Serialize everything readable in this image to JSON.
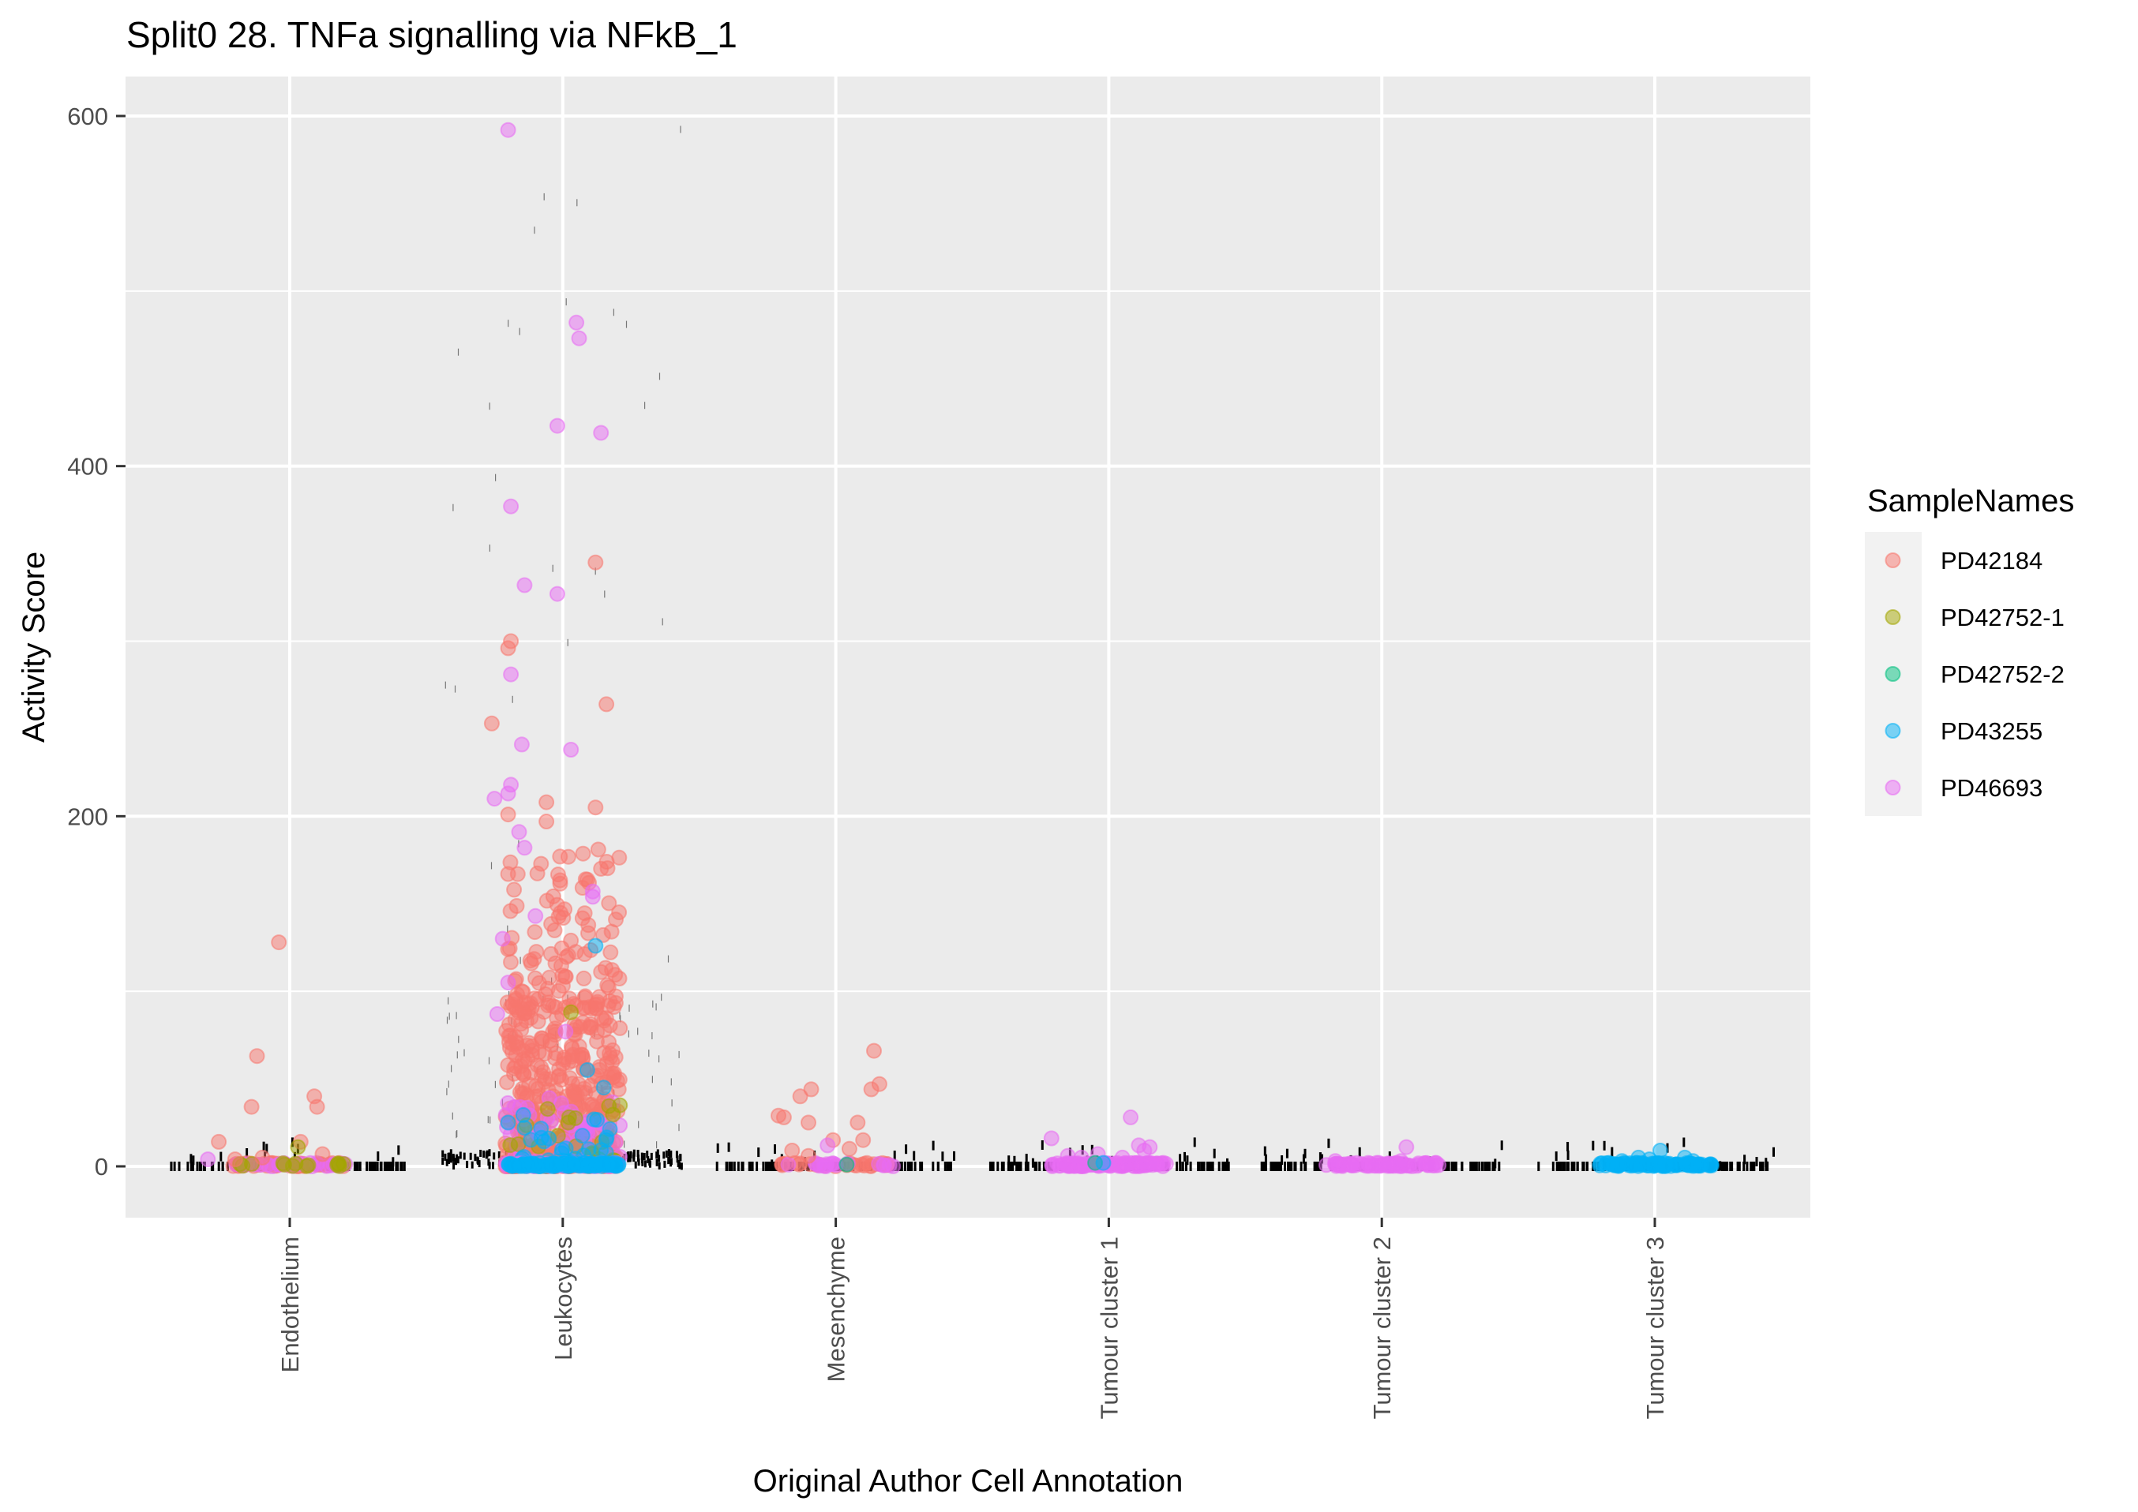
{
  "chart_data": {
    "type": "scatter",
    "subtype": "jitter-strip",
    "title": "Split0 28. TNFa signalling via NFkB_1",
    "xlabel": "Original Author Cell Annotation",
    "ylabel": "Activity Score",
    "ylim": [
      -29,
      610
    ],
    "yticks": [
      0,
      200,
      400,
      600
    ],
    "y_minor_ticks": [
      100,
      300,
      500
    ],
    "grid": true,
    "categories": [
      "Endothelium",
      "Leukocytes",
      "Mesenchyme",
      "Tumour cluster 1",
      "Tumour cluster 2",
      "Tumour cluster 3"
    ],
    "legend": {
      "title": "SampleNames",
      "position": "right",
      "entries": [
        {
          "label": "PD42184",
          "color": "#F8766D"
        },
        {
          "label": "PD42752-1",
          "color": "#A3A500"
        },
        {
          "label": "PD42752-2",
          "color": "#00BF7D"
        },
        {
          "label": "PD43255",
          "color": "#00B0F6"
        },
        {
          "label": "PD46693",
          "color": "#E76BF3"
        }
      ]
    },
    "point_alpha": 0.5,
    "groups": [
      {
        "category": "Endothelium",
        "dense_baseline": [
          {
            "sample": "PD42184",
            "n": 40
          },
          {
            "sample": "PD46693",
            "n": 25
          },
          {
            "sample": "PD42752-1",
            "n": 14
          }
        ],
        "points": [
          {
            "sample": "PD42184",
            "dx": -0.04,
            "y": 128
          },
          {
            "sample": "PD42184",
            "dx": -0.12,
            "y": 63
          },
          {
            "sample": "PD42184",
            "dx": 0.09,
            "y": 40
          },
          {
            "sample": "PD42184",
            "dx": 0.1,
            "y": 34
          },
          {
            "sample": "PD42184",
            "dx": -0.14,
            "y": 34
          },
          {
            "sample": "PD42184",
            "dx": 0.04,
            "y": 14
          },
          {
            "sample": "PD42184",
            "dx": -0.26,
            "y": 14
          },
          {
            "sample": "PD42184",
            "dx": 0.12,
            "y": 7
          },
          {
            "sample": "PD42184",
            "dx": -0.2,
            "y": 4
          },
          {
            "sample": "PD42184",
            "dx": -0.1,
            "y": 5
          },
          {
            "sample": "PD42752-1",
            "dx": 0.03,
            "y": 11
          },
          {
            "sample": "PD46693",
            "dx": -0.3,
            "y": 4
          }
        ]
      },
      {
        "category": "Leukocytes",
        "dense_baseline": [
          {
            "sample": "PD42184",
            "n": 60
          },
          {
            "sample": "PD46693",
            "n": 55
          },
          {
            "sample": "PD43255",
            "n": 90
          }
        ],
        "cloud": [
          {
            "sample": "PD42184",
            "n": 420,
            "ymax": 90
          },
          {
            "sample": "PD42184",
            "n": 120,
            "ymin": 90,
            "ymax": 180
          },
          {
            "sample": "PD46693",
            "n": 70,
            "ymax": 40
          },
          {
            "sample": "PD42752-1",
            "n": 25,
            "ymax": 40
          },
          {
            "sample": "PD43255",
            "n": 30,
            "ymax": 30
          }
        ],
        "points": [
          {
            "sample": "PD46693",
            "dx": -0.2,
            "y": 592
          },
          {
            "sample": "PD46693",
            "dx": 0.05,
            "y": 482
          },
          {
            "sample": "PD46693",
            "dx": 0.06,
            "y": 473
          },
          {
            "sample": "PD46693",
            "dx": -0.02,
            "y": 423
          },
          {
            "sample": "PD46693",
            "dx": 0.14,
            "y": 419
          },
          {
            "sample": "PD46693",
            "dx": -0.19,
            "y": 377
          },
          {
            "sample": "PD42184",
            "dx": 0.12,
            "y": 345
          },
          {
            "sample": "PD46693",
            "dx": -0.14,
            "y": 332
          },
          {
            "sample": "PD46693",
            "dx": -0.02,
            "y": 327
          },
          {
            "sample": "PD42184",
            "dx": -0.19,
            "y": 300
          },
          {
            "sample": "PD42184",
            "dx": -0.2,
            "y": 296
          },
          {
            "sample": "PD46693",
            "dx": -0.19,
            "y": 281
          },
          {
            "sample": "PD42184",
            "dx": 0.16,
            "y": 264
          },
          {
            "sample": "PD42184",
            "dx": -0.26,
            "y": 253
          },
          {
            "sample": "PD46693",
            "dx": -0.15,
            "y": 241
          },
          {
            "sample": "PD46693",
            "dx": 0.03,
            "y": 238
          },
          {
            "sample": "PD46693",
            "dx": -0.19,
            "y": 218
          },
          {
            "sample": "PD46693",
            "dx": -0.2,
            "y": 213
          },
          {
            "sample": "PD46693",
            "dx": -0.25,
            "y": 210
          },
          {
            "sample": "PD42184",
            "dx": -0.06,
            "y": 208
          },
          {
            "sample": "PD42184",
            "dx": 0.12,
            "y": 205
          },
          {
            "sample": "PD42184",
            "dx": -0.2,
            "y": 201
          },
          {
            "sample": "PD42184",
            "dx": -0.06,
            "y": 197
          },
          {
            "sample": "PD46693",
            "dx": -0.16,
            "y": 191
          },
          {
            "sample": "PD46693",
            "dx": -0.14,
            "y": 182
          },
          {
            "sample": "PD42184",
            "dx": 0.13,
            "y": 181
          },
          {
            "sample": "PD42184",
            "dx": -0.01,
            "y": 177
          },
          {
            "sample": "PD42184",
            "dx": 0.14,
            "y": 170
          },
          {
            "sample": "PD42184",
            "dx": -0.2,
            "y": 167
          },
          {
            "sample": "PD46693",
            "dx": 0.11,
            "y": 157
          },
          {
            "sample": "PD46693",
            "dx": 0.11,
            "y": 154
          },
          {
            "sample": "PD46693",
            "dx": -0.1,
            "y": 143
          },
          {
            "sample": "PD43255",
            "dx": 0.12,
            "y": 126
          },
          {
            "sample": "PD46693",
            "dx": -0.22,
            "y": 130
          },
          {
            "sample": "PD46693",
            "dx": -0.2,
            "y": 105
          },
          {
            "sample": "PD46693",
            "dx": -0.24,
            "y": 87
          },
          {
            "sample": "PD46693",
            "dx": 0.01,
            "y": 77
          },
          {
            "sample": "PD43255",
            "dx": 0.09,
            "y": 55
          },
          {
            "sample": "PD43255",
            "dx": 0.15,
            "y": 45
          },
          {
            "sample": "PD43255",
            "dx": -0.2,
            "y": 25
          },
          {
            "sample": "PD43255",
            "dx": -0.14,
            "y": 22
          },
          {
            "sample": "PD42752-1",
            "dx": 0.02,
            "y": 25
          },
          {
            "sample": "PD42752-1",
            "dx": 0.03,
            "y": 88
          }
        ]
      },
      {
        "category": "Mesenchyme",
        "dense_baseline": [
          {
            "sample": "PD42184",
            "n": 30
          },
          {
            "sample": "PD46693",
            "n": 18
          }
        ],
        "points": [
          {
            "sample": "PD42184",
            "dx": 0.14,
            "y": 66
          },
          {
            "sample": "PD42184",
            "dx": 0.16,
            "y": 47
          },
          {
            "sample": "PD42184",
            "dx": -0.09,
            "y": 44
          },
          {
            "sample": "PD42184",
            "dx": 0.13,
            "y": 44
          },
          {
            "sample": "PD42184",
            "dx": -0.13,
            "y": 40
          },
          {
            "sample": "PD42184",
            "dx": -0.21,
            "y": 29
          },
          {
            "sample": "PD42184",
            "dx": -0.19,
            "y": 28
          },
          {
            "sample": "PD42184",
            "dx": 0.08,
            "y": 25
          },
          {
            "sample": "PD42184",
            "dx": -0.1,
            "y": 25
          },
          {
            "sample": "PD42184",
            "dx": -0.01,
            "y": 15
          },
          {
            "sample": "PD42184",
            "dx": 0.1,
            "y": 15
          },
          {
            "sample": "PD42184",
            "dx": -0.16,
            "y": 9
          },
          {
            "sample": "PD42184",
            "dx": 0.05,
            "y": 10
          },
          {
            "sample": "PD42184",
            "dx": -0.1,
            "y": 6
          },
          {
            "sample": "PD46693",
            "dx": -0.03,
            "y": 12
          },
          {
            "sample": "PD42752-2",
            "dx": 0.04,
            "y": 1
          }
        ]
      },
      {
        "category": "Tumour cluster 1",
        "dense_baseline": [
          {
            "sample": "PD46693",
            "n": 110
          }
        ],
        "points": [
          {
            "sample": "PD46693",
            "dx": 0.08,
            "y": 28
          },
          {
            "sample": "PD46693",
            "dx": -0.21,
            "y": 16
          },
          {
            "sample": "PD46693",
            "dx": 0.11,
            "y": 12
          },
          {
            "sample": "PD46693",
            "dx": 0.15,
            "y": 11
          },
          {
            "sample": "PD46693",
            "dx": 0.13,
            "y": 9
          },
          {
            "sample": "PD46693",
            "dx": -0.04,
            "y": 7
          },
          {
            "sample": "PD46693",
            "dx": -0.15,
            "y": 6
          },
          {
            "sample": "PD46693",
            "dx": -0.1,
            "y": 5
          },
          {
            "sample": "PD46693",
            "dx": 0.05,
            "y": 5
          },
          {
            "sample": "PD42752-2",
            "dx": -0.05,
            "y": 2
          },
          {
            "sample": "PD43255",
            "dx": -0.02,
            "y": 2
          }
        ]
      },
      {
        "category": "Tumour cluster 2",
        "dense_baseline": [
          {
            "sample": "PD46693",
            "n": 80
          }
        ],
        "points": [
          {
            "sample": "PD46693",
            "dx": 0.09,
            "y": 11
          },
          {
            "sample": "PD46693",
            "dx": -0.17,
            "y": 3
          },
          {
            "sample": "PD46693",
            "dx": 0.07,
            "y": 3
          },
          {
            "sample": "PD46693",
            "dx": -0.05,
            "y": 2
          }
        ]
      },
      {
        "category": "Tumour cluster 3",
        "dense_baseline": [
          {
            "sample": "PD43255",
            "n": 90
          }
        ],
        "points": [
          {
            "sample": "PD43255",
            "dx": 0.02,
            "y": 9
          },
          {
            "sample": "PD43255",
            "dx": -0.06,
            "y": 5
          },
          {
            "sample": "PD43255",
            "dx": 0.11,
            "y": 5
          },
          {
            "sample": "PD43255",
            "dx": -0.02,
            "y": 4
          },
          {
            "sample": "PD43255",
            "dx": -0.12,
            "y": 3
          },
          {
            "sample": "PD43255",
            "dx": 0.14,
            "y": 3
          }
        ]
      }
    ]
  }
}
